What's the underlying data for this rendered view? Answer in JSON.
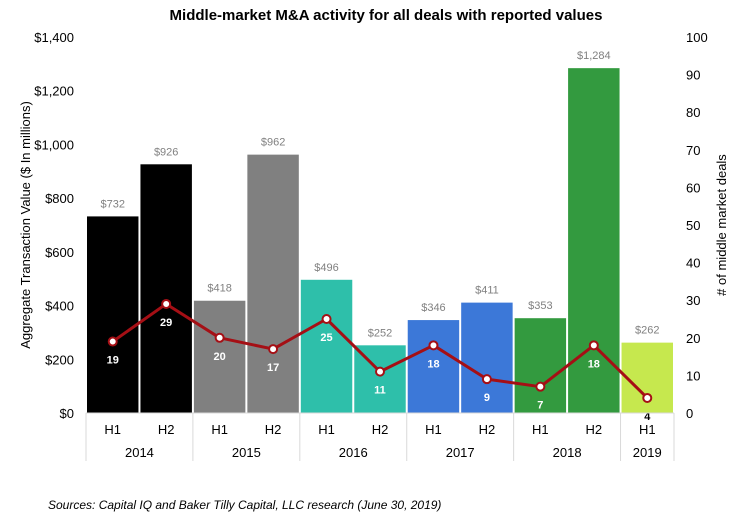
{
  "chart_data": {
    "type": "bar",
    "title": "Middle-market M&A activity for all deals with reported values",
    "ylabel": "Aggregate  Transaction  Value ($ In millions)",
    "y2label": "# of middle market deals",
    "ylim": [
      0,
      1400
    ],
    "y2lim": [
      0,
      100
    ],
    "yticks": [
      "$0",
      "$200",
      "$400",
      "$600",
      "$800",
      "$1,000",
      "$1,200",
      "$1,400"
    ],
    "y2ticks": [
      "0",
      "10",
      "20",
      "30",
      "40",
      "50",
      "60",
      "70",
      "80",
      "90",
      "100"
    ],
    "categories": [
      "H1",
      "H2",
      "H1",
      "H2",
      "H1",
      "H2",
      "H1",
      "H2",
      "H1",
      "H2",
      "H1"
    ],
    "years": [
      {
        "label": "2014",
        "count": 2
      },
      {
        "label": "2015",
        "count": 2
      },
      {
        "label": "2016",
        "count": 2
      },
      {
        "label": "2017",
        "count": 2
      },
      {
        "label": "2018",
        "count": 2
      },
      {
        "label": "2019",
        "count": 1
      }
    ],
    "series": [
      {
        "type": "bar",
        "values": [
          732,
          926,
          418,
          962,
          496,
          252,
          346,
          411,
          353,
          1284,
          262
        ],
        "value_labels": [
          "$732",
          "$926",
          "$418",
          "$962",
          "$496",
          "$252",
          "$346",
          "$411",
          "$353",
          "$1,284",
          "$262"
        ],
        "colors": [
          "#000000",
          "#000000",
          "#808080",
          "#808080",
          "#2ebfaa",
          "#2ebfaa",
          "#3c78d8",
          "#3c78d8",
          "#339a3f",
          "#339a3f",
          "#c6e84e"
        ]
      },
      {
        "type": "line",
        "axis": "secondary",
        "values": [
          19,
          29,
          20,
          17,
          25,
          11,
          18,
          9,
          7,
          18,
          4
        ],
        "color": "#a50f15"
      }
    ],
    "source": "Sources: Capital IQ and Baker Tilly Capital, LLC research (June 30, 2019)"
  }
}
